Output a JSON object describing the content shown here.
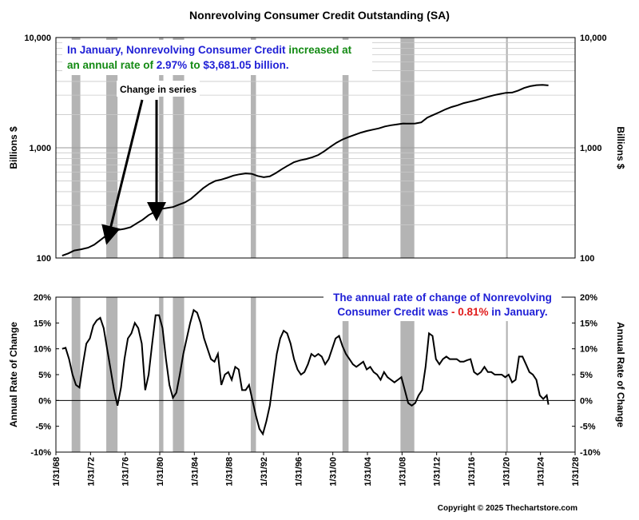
{
  "chart_data": [
    {
      "type": "line",
      "title": "Nonrevolving Consumer Credit Outstanding (SA)",
      "ylabel_left": "Billions $",
      "ylabel_right": "Billions $",
      "yscale": "log",
      "ylim": [
        100,
        10000
      ],
      "yticks": [
        "100",
        "1,000",
        "10,000"
      ],
      "grid": true,
      "annotation_text": {
        "p1": "In January, Nonrevolving Consumer Credit",
        "p2": "increased at",
        "p3": "an annual rate of",
        "p4": "2.97%",
        "p5": "to",
        "p6": "$3,681.05 billion."
      },
      "colors": {
        "blue": "#1f1fd6",
        "green": "#138a13",
        "red": "#e01b1b",
        "recession": "#b4b4b4"
      },
      "callout": "Change in series",
      "series": [
        {
          "x": [
            1968.8,
            1969.5,
            1970.2,
            1971.0,
            1971.8,
            1972.5,
            1973.2,
            1973.9,
            1974.6,
            1975.3,
            1976.0,
            1976.7,
            1977.4,
            1978.1,
            1978.8,
            1979.5,
            1980.2,
            1980.9,
            1981.6,
            1982.3,
            1983.0,
            1983.7,
            1984.4,
            1985.1,
            1985.8,
            1986.5,
            1987.2,
            1987.9,
            1988.6,
            1989.3,
            1990.0,
            1990.7,
            1991.4,
            1992.1,
            1992.8,
            1993.5,
            1994.2,
            1994.9,
            1995.6,
            1996.3,
            1997.0,
            1997.7,
            1998.4,
            1999.1,
            1999.8,
            2000.5,
            2001.2,
            2001.9,
            2002.6,
            2003.3,
            2004.0,
            2004.7,
            2005.4,
            2006.1,
            2006.8,
            2007.5,
            2008.2,
            2008.9,
            2009.6,
            2010.3,
            2011.0,
            2011.7,
            2012.4,
            2013.1,
            2013.8,
            2014.5,
            2015.2,
            2015.9,
            2016.6,
            2017.3,
            2018.0,
            2018.7,
            2019.4,
            2020.1,
            2020.8,
            2021.5,
            2022.2,
            2022.9,
            2023.6,
            2024.3,
            2025.0
          ],
          "y": [
            105,
            110,
            117,
            120,
            124,
            132,
            145,
            160,
            172,
            180,
            184,
            190,
            206,
            222,
            245,
            262,
            278,
            284,
            290,
            305,
            320,
            345,
            385,
            430,
            470,
            500,
            515,
            535,
            560,
            575,
            585,
            580,
            555,
            540,
            550,
            590,
            640,
            690,
            740,
            770,
            790,
            820,
            860,
            930,
            1020,
            1110,
            1190,
            1250,
            1310,
            1370,
            1420,
            1460,
            1500,
            1560,
            1600,
            1630,
            1660,
            1655,
            1660,
            1700,
            1880,
            1990,
            2100,
            2230,
            2340,
            2430,
            2540,
            2620,
            2700,
            2800,
            2900,
            3000,
            3080,
            3150,
            3170,
            3300,
            3490,
            3620,
            3700,
            3720,
            3681
          ]
        }
      ]
    },
    {
      "type": "line",
      "ylabel_left": "Annual Rate of Change",
      "ylabel_right": "Annual Rate of Change",
      "ylim": [
        -10,
        20
      ],
      "yticks": [
        "20%",
        "15%",
        "10%",
        "5%",
        "0%",
        "-5%",
        "-10%"
      ],
      "annotation_text": {
        "p1": "The annual rate of change of Nonrevolving",
        "p2": "Consumer Credit was",
        "p3": "-",
        "p4": "0.81%",
        "p5": "in January."
      },
      "x_tick_labels": [
        "1/31/68",
        "1/31/72",
        "1/31/76",
        "1/31/80",
        "1/31/84",
        "1/31/88",
        "1/31/92",
        "1/31/96",
        "1/31/00",
        "1/31/04",
        "1/31/08",
        "1/31/12",
        "1/31/16",
        "1/31/20",
        "1/31/24",
        "1/31/28"
      ],
      "xlim": [
        1968.08,
        2028.08
      ],
      "recessions": [
        [
          1969.9,
          1970.9
        ],
        [
          1973.9,
          1975.2
        ],
        [
          1980.0,
          1980.5
        ],
        [
          1981.6,
          1982.9
        ],
        [
          1990.6,
          1991.2
        ],
        [
          2001.2,
          2001.9
        ],
        [
          2007.9,
          2009.5
        ],
        [
          2020.1,
          2020.3
        ]
      ],
      "series": [
        {
          "x": [
            1968.8,
            1969.2,
            1969.6,
            1970.0,
            1970.4,
            1970.8,
            1971.2,
            1971.6,
            1972.0,
            1972.4,
            1972.8,
            1973.2,
            1973.6,
            1974.0,
            1974.4,
            1974.8,
            1975.2,
            1975.6,
            1976.0,
            1976.4,
            1976.8,
            1977.2,
            1977.6,
            1978.0,
            1978.4,
            1978.8,
            1979.2,
            1979.6,
            1980.0,
            1980.4,
            1980.8,
            1981.2,
            1981.6,
            1982.0,
            1982.4,
            1982.8,
            1983.2,
            1983.6,
            1984.0,
            1984.4,
            1984.8,
            1985.2,
            1985.6,
            1986.0,
            1986.4,
            1986.8,
            1987.2,
            1987.6,
            1988.0,
            1988.4,
            1988.8,
            1989.2,
            1989.6,
            1990.0,
            1990.4,
            1990.8,
            1991.2,
            1991.6,
            1992.0,
            1992.4,
            1992.8,
            1993.2,
            1993.6,
            1994.0,
            1994.4,
            1994.8,
            1995.2,
            1995.6,
            1996.0,
            1996.4,
            1996.8,
            1997.2,
            1997.6,
            1998.0,
            1998.4,
            1998.8,
            1999.2,
            1999.6,
            2000.0,
            2000.4,
            2000.8,
            2001.2,
            2001.6,
            2002.0,
            2002.4,
            2002.8,
            2003.2,
            2003.6,
            2004.0,
            2004.4,
            2004.8,
            2005.2,
            2005.6,
            2006.0,
            2006.4,
            2006.8,
            2007.2,
            2007.6,
            2008.0,
            2008.4,
            2008.8,
            2009.2,
            2009.6,
            2010.0,
            2010.4,
            2010.8,
            2011.2,
            2011.6,
            2012.0,
            2012.4,
            2012.8,
            2013.2,
            2013.6,
            2014.0,
            2014.4,
            2014.8,
            2015.2,
            2015.6,
            2016.0,
            2016.4,
            2016.8,
            2017.2,
            2017.6,
            2018.0,
            2018.4,
            2018.8,
            2019.2,
            2019.6,
            2020.0,
            2020.4,
            2020.8,
            2021.2,
            2021.6,
            2022.0,
            2022.4,
            2022.8,
            2023.2,
            2023.6,
            2024.0,
            2024.4,
            2024.8,
            2025.0
          ],
          "y": [
            10.0,
            10.2,
            8.0,
            5.0,
            3.0,
            2.5,
            7.0,
            11.0,
            12.0,
            14.5,
            15.5,
            16.0,
            14.0,
            10.0,
            6.0,
            2.0,
            -1.0,
            2.5,
            8.0,
            12.0,
            13.0,
            15.0,
            14.0,
            11.0,
            2.0,
            5.0,
            11.0,
            16.5,
            16.5,
            14.0,
            8.0,
            3.0,
            0.5,
            1.5,
            5.0,
            9.0,
            12.0,
            15.0,
            17.5,
            17.0,
            15.0,
            12.0,
            10.0,
            8.0,
            7.5,
            9.0,
            3.0,
            5.0,
            5.5,
            4.0,
            6.5,
            6.0,
            2.0,
            2.0,
            3.0,
            0.0,
            -3.0,
            -5.5,
            -6.5,
            -4.0,
            -1.0,
            4.0,
            9.0,
            12.0,
            13.5,
            13.0,
            11.0,
            8.0,
            6.0,
            5.0,
            5.5,
            7.0,
            9.0,
            8.5,
            9.0,
            8.5,
            7.0,
            8.0,
            10.0,
            12.0,
            12.5,
            10.5,
            9.0,
            8.0,
            7.0,
            6.5,
            7.0,
            7.5,
            6.0,
            6.5,
            5.5,
            5.0,
            4.0,
            5.5,
            4.5,
            4.0,
            3.5,
            4.0,
            4.5,
            2.0,
            -0.5,
            -1.0,
            -0.5,
            1.0,
            2.0,
            6.5,
            13.0,
            12.5,
            8.0,
            7.0,
            8.0,
            8.5,
            8.0,
            8.0,
            8.0,
            7.5,
            7.5,
            7.8,
            8.0,
            5.5,
            5.0,
            5.5,
            6.5,
            5.5,
            5.5,
            5.0,
            5.0,
            5.0,
            4.5,
            5.0,
            3.5,
            4.0,
            8.5,
            8.5,
            7.0,
            5.5,
            5.0,
            4.0,
            1.0,
            0.3,
            1.0,
            -0.81
          ]
        }
      ]
    }
  ],
  "footer": {
    "copyright": "Copyright © 2025 Thechartstore.com"
  }
}
